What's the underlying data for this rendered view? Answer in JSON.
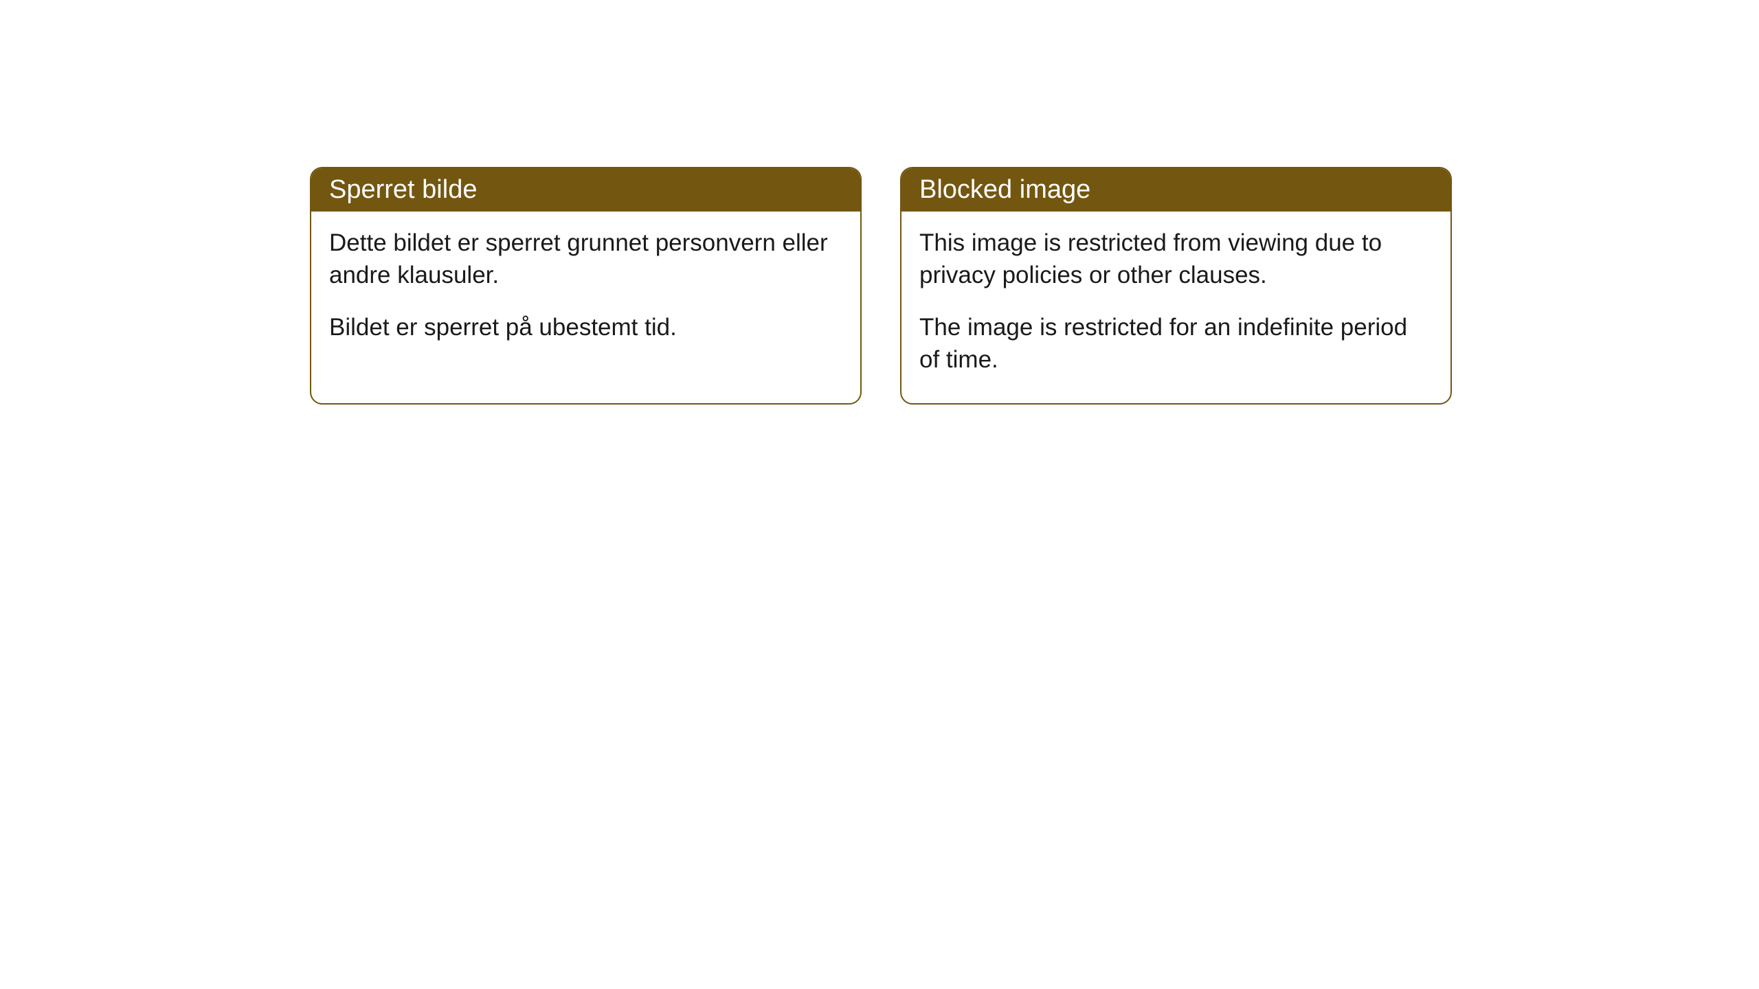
{
  "cards": [
    {
      "title": "Sperret bilde",
      "paragraph1": "Dette bildet er sperret grunnet personvern eller andre klausuler.",
      "paragraph2": "Bildet er sperret på ubestemt tid."
    },
    {
      "title": "Blocked image",
      "paragraph1": "This image is restricted from viewing due to privacy policies or other clauses.",
      "paragraph2": "The image is restricted for an indefinite period of time."
    }
  ],
  "styling": {
    "header_background": "#735610",
    "header_text_color": "#ffffff",
    "border_color": "#735610",
    "body_text_color": "#1a1a1a",
    "card_background": "#ffffff",
    "page_background": "#ffffff",
    "border_radius": 18,
    "title_fontsize": 38,
    "body_fontsize": 35
  }
}
